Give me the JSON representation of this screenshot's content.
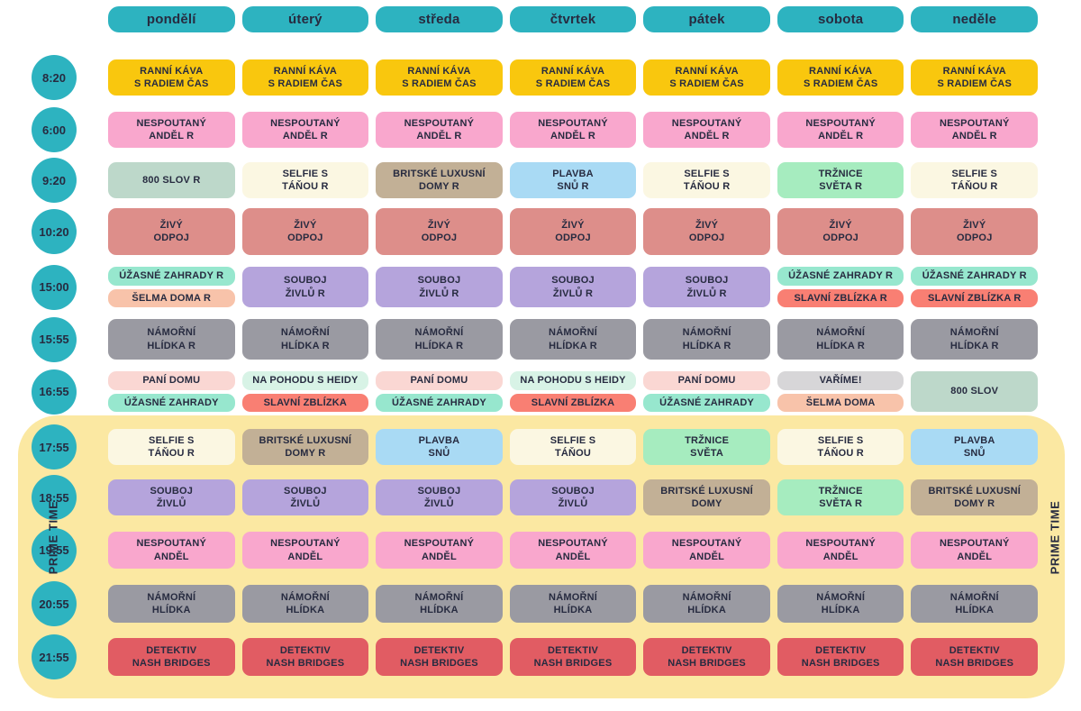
{
  "palette": {
    "teal": "#2DB3C0",
    "gold": "#F9C70E",
    "pink": "#F9A7CD",
    "sage": "#BDD8CA",
    "cream": "#FBF7E2",
    "tan": "#C2B096",
    "lightblue": "#A9DAF4",
    "springgreen": "#A6ECBF",
    "rose": "#DD8E8A",
    "mint": "#97E7CE",
    "peach": "#F8C3AA",
    "purple": "#B5A4DC",
    "coral": "#F97F73",
    "gray": "#9A9AA2",
    "lightpink": "#FAD7D3",
    "palemint": "#D8F3E6",
    "lightgray": "#D7D6D8",
    "red": "#E15C63",
    "prime_bg": "#FBE8A2",
    "text": "#272B40"
  },
  "prime_time": {
    "label": "PRIME TIME"
  },
  "chart_data": {
    "type": "table",
    "columns": [
      "pondělí",
      "úterý",
      "středa",
      "čtvrtek",
      "pátek",
      "sobota",
      "neděle"
    ],
    "prime_time_range": {
      "from": "17:55",
      "to": "21:55"
    },
    "rows": [
      {
        "time": "8:20",
        "cells": [
          [
            {
              "lines": [
                "RANNÍ KÁVA",
                "S RADIEM ČAS"
              ],
              "color": "gold"
            }
          ],
          [
            {
              "lines": [
                "RANNÍ KÁVA",
                "S RADIEM ČAS"
              ],
              "color": "gold"
            }
          ],
          [
            {
              "lines": [
                "RANNÍ KÁVA",
                "S RADIEM ČAS"
              ],
              "color": "gold"
            }
          ],
          [
            {
              "lines": [
                "RANNÍ KÁVA",
                "S RADIEM ČAS"
              ],
              "color": "gold"
            }
          ],
          [
            {
              "lines": [
                "RANNÍ KÁVA",
                "S RADIEM ČAS"
              ],
              "color": "gold"
            }
          ],
          [
            {
              "lines": [
                "RANNÍ KÁVA",
                "S RADIEM ČAS"
              ],
              "color": "gold"
            }
          ],
          [
            {
              "lines": [
                "RANNÍ KÁVA",
                "S RADIEM ČAS"
              ],
              "color": "gold"
            }
          ]
        ]
      },
      {
        "time": "6:00",
        "cells": [
          [
            {
              "lines": [
                "NESPOUTANÝ",
                "ANDĚL R"
              ],
              "color": "pink"
            }
          ],
          [
            {
              "lines": [
                "NESPOUTANÝ",
                "ANDĚL R"
              ],
              "color": "pink"
            }
          ],
          [
            {
              "lines": [
                "NESPOUTANÝ",
                "ANDĚL R"
              ],
              "color": "pink"
            }
          ],
          [
            {
              "lines": [
                "NESPOUTANÝ",
                "ANDĚL R"
              ],
              "color": "pink"
            }
          ],
          [
            {
              "lines": [
                "NESPOUTANÝ",
                "ANDĚL R"
              ],
              "color": "pink"
            }
          ],
          [
            {
              "lines": [
                "NESPOUTANÝ",
                "ANDĚL R"
              ],
              "color": "pink"
            }
          ],
          [
            {
              "lines": [
                "NESPOUTANÝ",
                "ANDĚL R"
              ],
              "color": "pink"
            }
          ]
        ]
      },
      {
        "time": "9:20",
        "cells": [
          [
            {
              "lines": [
                "800 SLOV R"
              ],
              "color": "sage"
            }
          ],
          [
            {
              "lines": [
                "SELFIE S",
                "TÁŇOU R"
              ],
              "color": "cream"
            }
          ],
          [
            {
              "lines": [
                "BRITSKÉ LUXUSNÍ",
                "DOMY R"
              ],
              "color": "tan"
            }
          ],
          [
            {
              "lines": [
                "PLAVBA",
                "SNŮ R"
              ],
              "color": "lightblue"
            }
          ],
          [
            {
              "lines": [
                "SELFIE S",
                "TÁŇOU R"
              ],
              "color": "cream"
            }
          ],
          [
            {
              "lines": [
                "TRŽNICE",
                "SVĚTA R"
              ],
              "color": "springgreen"
            }
          ],
          [
            {
              "lines": [
                "SELFIE S",
                "TÁŇOU R"
              ],
              "color": "cream"
            }
          ]
        ]
      },
      {
        "time": "10:20",
        "cells": [
          [
            {
              "lines": [
                "ŽIVÝ",
                "ODPOJ"
              ],
              "color": "rose"
            }
          ],
          [
            {
              "lines": [
                "ŽIVÝ",
                "ODPOJ"
              ],
              "color": "rose"
            }
          ],
          [
            {
              "lines": [
                "ŽIVÝ",
                "ODPOJ"
              ],
              "color": "rose"
            }
          ],
          [
            {
              "lines": [
                "ŽIVÝ",
                "ODPOJ"
              ],
              "color": "rose"
            }
          ],
          [
            {
              "lines": [
                "ŽIVÝ",
                "ODPOJ"
              ],
              "color": "rose"
            }
          ],
          [
            {
              "lines": [
                "ŽIVÝ",
                "ODPOJ"
              ],
              "color": "rose"
            }
          ],
          [
            {
              "lines": [
                "ŽIVÝ",
                "ODPOJ"
              ],
              "color": "rose"
            }
          ]
        ]
      },
      {
        "time": "15:00",
        "cells": [
          [
            {
              "lines": [
                "ÚŽASNÉ ZAHRADY R"
              ],
              "color": "mint"
            },
            {
              "lines": [
                "ŠELMA DOMA R"
              ],
              "color": "peach"
            }
          ],
          [
            {
              "lines": [
                "SOUBOJ",
                "ŽIVLŮ R"
              ],
              "color": "purple"
            }
          ],
          [
            {
              "lines": [
                "SOUBOJ",
                "ŽIVLŮ R"
              ],
              "color": "purple"
            }
          ],
          [
            {
              "lines": [
                "SOUBOJ",
                "ŽIVLŮ R"
              ],
              "color": "purple"
            }
          ],
          [
            {
              "lines": [
                "SOUBOJ",
                "ŽIVLŮ R"
              ],
              "color": "purple"
            }
          ],
          [
            {
              "lines": [
                "ÚŽASNÉ ZAHRADY R"
              ],
              "color": "mint"
            },
            {
              "lines": [
                "SLAVNÍ ZBLÍZKA R"
              ],
              "color": "coral"
            }
          ],
          [
            {
              "lines": [
                "ÚŽASNÉ ZAHRADY R"
              ],
              "color": "mint"
            },
            {
              "lines": [
                "SLAVNÍ ZBLÍZKA R"
              ],
              "color": "coral"
            }
          ]
        ]
      },
      {
        "time": "15:55",
        "cells": [
          [
            {
              "lines": [
                "NÁMOŘNÍ",
                "HLÍDKA R"
              ],
              "color": "gray"
            }
          ],
          [
            {
              "lines": [
                "NÁMOŘNÍ",
                "HLÍDKA R"
              ],
              "color": "gray"
            }
          ],
          [
            {
              "lines": [
                "NÁMOŘNÍ",
                "HLÍDKA R"
              ],
              "color": "gray"
            }
          ],
          [
            {
              "lines": [
                "NÁMOŘNÍ",
                "HLÍDKA R"
              ],
              "color": "gray"
            }
          ],
          [
            {
              "lines": [
                "NÁMOŘNÍ",
                "HLÍDKA R"
              ],
              "color": "gray"
            }
          ],
          [
            {
              "lines": [
                "NÁMOŘNÍ",
                "HLÍDKA R"
              ],
              "color": "gray"
            }
          ],
          [
            {
              "lines": [
                "NÁMOŘNÍ",
                "HLÍDKA R"
              ],
              "color": "gray"
            }
          ]
        ]
      },
      {
        "time": "16:55",
        "cells": [
          [
            {
              "lines": [
                "PANÍ DOMU"
              ],
              "color": "lightpink"
            },
            {
              "lines": [
                "ÚŽASNÉ ZAHRADY"
              ],
              "color": "mint"
            }
          ],
          [
            {
              "lines": [
                "NA POHODU S HEIDY"
              ],
              "color": "palemint"
            },
            {
              "lines": [
                "SLAVNÍ ZBLÍZKA"
              ],
              "color": "coral"
            }
          ],
          [
            {
              "lines": [
                "PANÍ DOMU"
              ],
              "color": "lightpink"
            },
            {
              "lines": [
                "ÚŽASNÉ ZAHRADY"
              ],
              "color": "mint"
            }
          ],
          [
            {
              "lines": [
                "NA POHODU S HEIDY"
              ],
              "color": "palemint"
            },
            {
              "lines": [
                "SLAVNÍ ZBLÍZKA"
              ],
              "color": "coral"
            }
          ],
          [
            {
              "lines": [
                "PANÍ DOMU"
              ],
              "color": "lightpink"
            },
            {
              "lines": [
                "ÚŽASNÉ ZAHRADY"
              ],
              "color": "mint"
            }
          ],
          [
            {
              "lines": [
                "VAŘÍME!"
              ],
              "color": "lightgray"
            },
            {
              "lines": [
                "ŠELMA DOMA"
              ],
              "color": "peach"
            }
          ],
          [
            {
              "lines": [
                "800 SLOV"
              ],
              "color": "sage"
            }
          ]
        ]
      },
      {
        "time": "17:55",
        "cells": [
          [
            {
              "lines": [
                "SELFIE S",
                "TÁŇOU R"
              ],
              "color": "cream"
            }
          ],
          [
            {
              "lines": [
                "BRITSKÉ LUXUSNÍ",
                "DOMY R"
              ],
              "color": "tan"
            }
          ],
          [
            {
              "lines": [
                "PLAVBA",
                "SNŮ"
              ],
              "color": "lightblue"
            }
          ],
          [
            {
              "lines": [
                "SELFIE S",
                "TÁŇOU"
              ],
              "color": "cream"
            }
          ],
          [
            {
              "lines": [
                "TRŽNICE",
                "SVĚTA"
              ],
              "color": "springgreen"
            }
          ],
          [
            {
              "lines": [
                "SELFIE S",
                "TÁŇOU R"
              ],
              "color": "cream"
            }
          ],
          [
            {
              "lines": [
                "PLAVBA",
                "SNŮ"
              ],
              "color": "lightblue"
            }
          ]
        ]
      },
      {
        "time": "18:55",
        "cells": [
          [
            {
              "lines": [
                "SOUBOJ",
                "ŽIVLŮ"
              ],
              "color": "purple"
            }
          ],
          [
            {
              "lines": [
                "SOUBOJ",
                "ŽIVLŮ"
              ],
              "color": "purple"
            }
          ],
          [
            {
              "lines": [
                "SOUBOJ",
                "ŽIVLŮ"
              ],
              "color": "purple"
            }
          ],
          [
            {
              "lines": [
                "SOUBOJ",
                "ŽIVLŮ"
              ],
              "color": "purple"
            }
          ],
          [
            {
              "lines": [
                "BRITSKÉ LUXUSNÍ",
                "DOMY"
              ],
              "color": "tan"
            }
          ],
          [
            {
              "lines": [
                "TRŽNICE",
                "SVĚTA R"
              ],
              "color": "springgreen"
            }
          ],
          [
            {
              "lines": [
                "BRITSKÉ LUXUSNÍ",
                "DOMY R"
              ],
              "color": "tan"
            }
          ]
        ]
      },
      {
        "time": "19:55",
        "cells": [
          [
            {
              "lines": [
                "NESPOUTANÝ",
                "ANDĚL"
              ],
              "color": "pink"
            }
          ],
          [
            {
              "lines": [
                "NESPOUTANÝ",
                "ANDĚL"
              ],
              "color": "pink"
            }
          ],
          [
            {
              "lines": [
                "NESPOUTANÝ",
                "ANDĚL"
              ],
              "color": "pink"
            }
          ],
          [
            {
              "lines": [
                "NESPOUTANÝ",
                "ANDĚL"
              ],
              "color": "pink"
            }
          ],
          [
            {
              "lines": [
                "NESPOUTANÝ",
                "ANDĚL"
              ],
              "color": "pink"
            }
          ],
          [
            {
              "lines": [
                "NESPOUTANÝ",
                "ANDĚL"
              ],
              "color": "pink"
            }
          ],
          [
            {
              "lines": [
                "NESPOUTANÝ",
                "ANDĚL"
              ],
              "color": "pink"
            }
          ]
        ]
      },
      {
        "time": "20:55",
        "cells": [
          [
            {
              "lines": [
                "NÁMOŘNÍ",
                "HLÍDKA"
              ],
              "color": "gray"
            }
          ],
          [
            {
              "lines": [
                "NÁMOŘNÍ",
                "HLÍDKA"
              ],
              "color": "gray"
            }
          ],
          [
            {
              "lines": [
                "NÁMOŘNÍ",
                "HLÍDKA"
              ],
              "color": "gray"
            }
          ],
          [
            {
              "lines": [
                "NÁMOŘNÍ",
                "HLÍDKA"
              ],
              "color": "gray"
            }
          ],
          [
            {
              "lines": [
                "NÁMOŘNÍ",
                "HLÍDKA"
              ],
              "color": "gray"
            }
          ],
          [
            {
              "lines": [
                "NÁMOŘNÍ",
                "HLÍDKA"
              ],
              "color": "gray"
            }
          ],
          [
            {
              "lines": [
                "NÁMOŘNÍ",
                "HLÍDKA"
              ],
              "color": "gray"
            }
          ]
        ]
      },
      {
        "time": "21:55",
        "cells": [
          [
            {
              "lines": [
                "DETEKTIV",
                "NASH BRIDGES"
              ],
              "color": "red"
            }
          ],
          [
            {
              "lines": [
                "DETEKTIV",
                "NASH BRIDGES"
              ],
              "color": "red"
            }
          ],
          [
            {
              "lines": [
                "DETEKTIV",
                "NASH BRIDGES"
              ],
              "color": "red"
            }
          ],
          [
            {
              "lines": [
                "DETEKTIV",
                "NASH BRIDGES"
              ],
              "color": "red"
            }
          ],
          [
            {
              "lines": [
                "DETEKTIV",
                "NASH BRIDGES"
              ],
              "color": "red"
            }
          ],
          [
            {
              "lines": [
                "DETEKTIV",
                "NASH BRIDGES"
              ],
              "color": "red"
            }
          ],
          [
            {
              "lines": [
                "DETEKTIV",
                "NASH BRIDGES"
              ],
              "color": "red"
            }
          ]
        ]
      }
    ]
  }
}
